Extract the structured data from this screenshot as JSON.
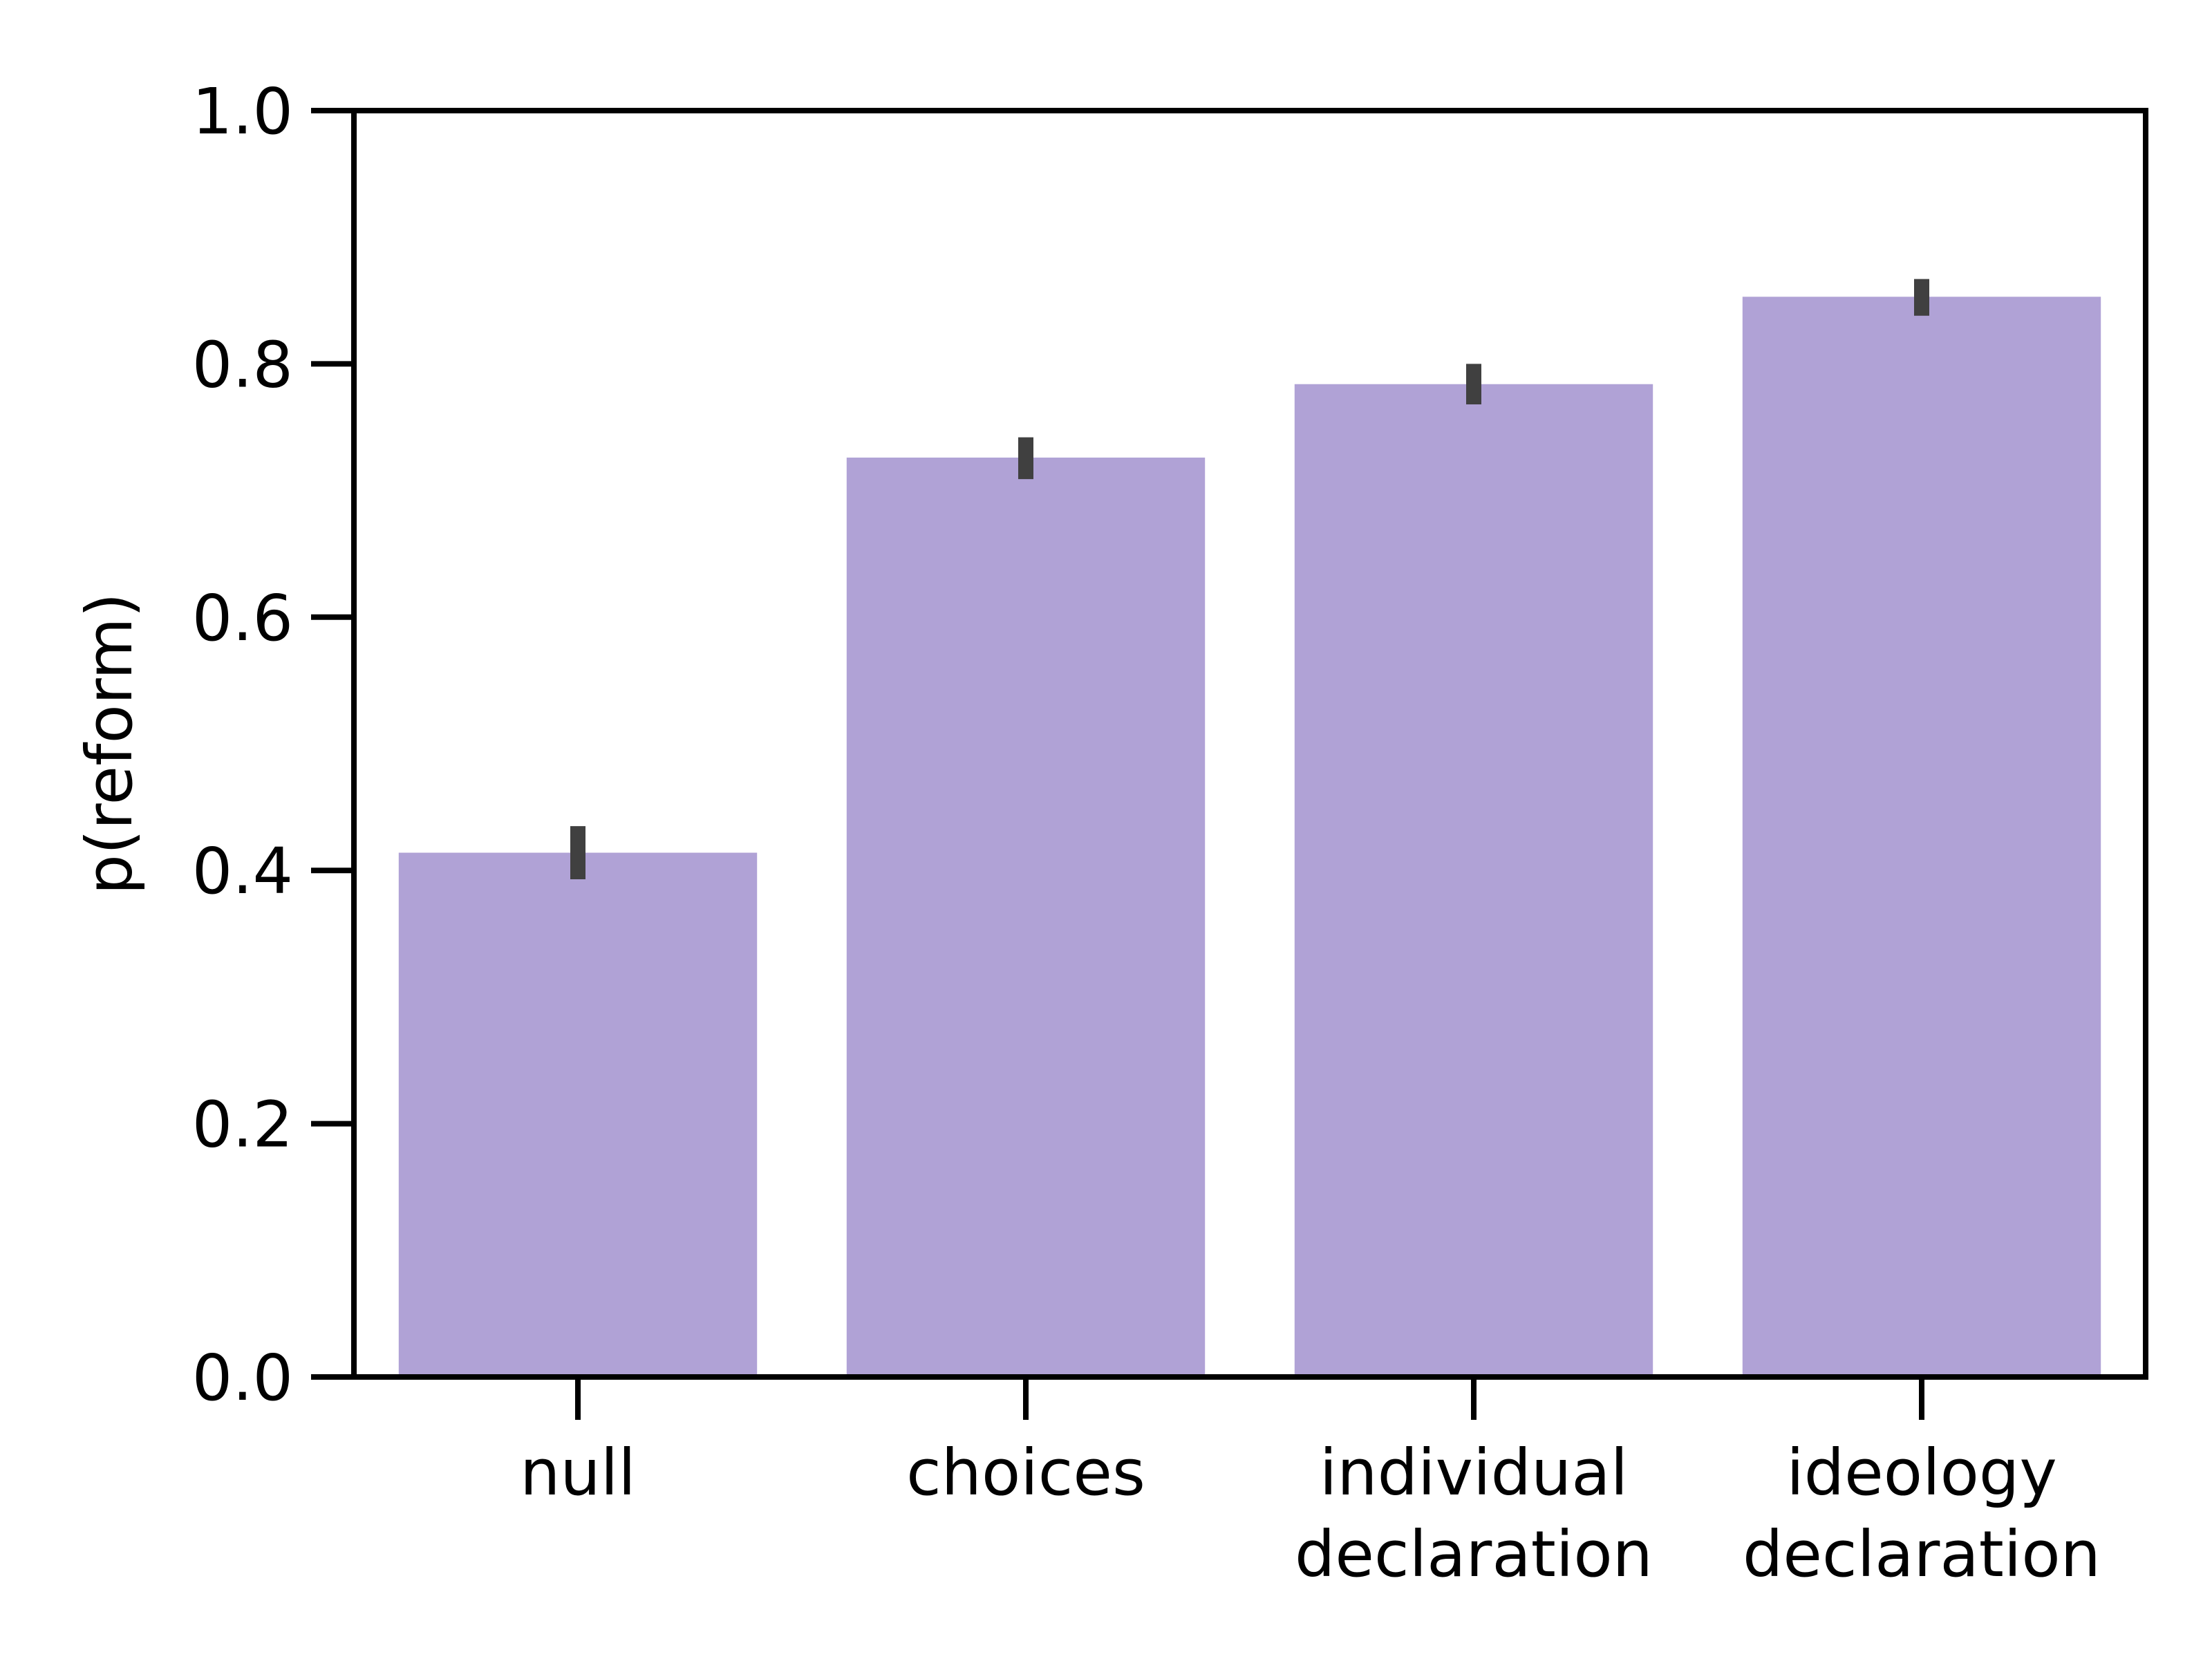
{
  "chart_data": {
    "type": "bar",
    "title": "",
    "xlabel": "",
    "ylabel": "p(reform)",
    "ylim": [
      0,
      1.0
    ],
    "yticks": [
      "0.0",
      "0.2",
      "0.4",
      "0.6",
      "0.8",
      "1.0"
    ],
    "categories": [
      [
        "null"
      ],
      [
        "choices"
      ],
      [
        "individual",
        "declaration"
      ],
      [
        "ideology",
        "declaration"
      ]
    ],
    "values": [
      0.414,
      0.726,
      0.784,
      0.853
    ],
    "error_bars": [
      [
        0.393,
        0.435
      ],
      [
        0.709,
        0.742
      ],
      [
        0.768,
        0.8
      ],
      [
        0.838,
        0.867
      ]
    ],
    "bar_color": "#b0a2d6",
    "error_color": "#404040",
    "grid": false,
    "legend": "none"
  }
}
